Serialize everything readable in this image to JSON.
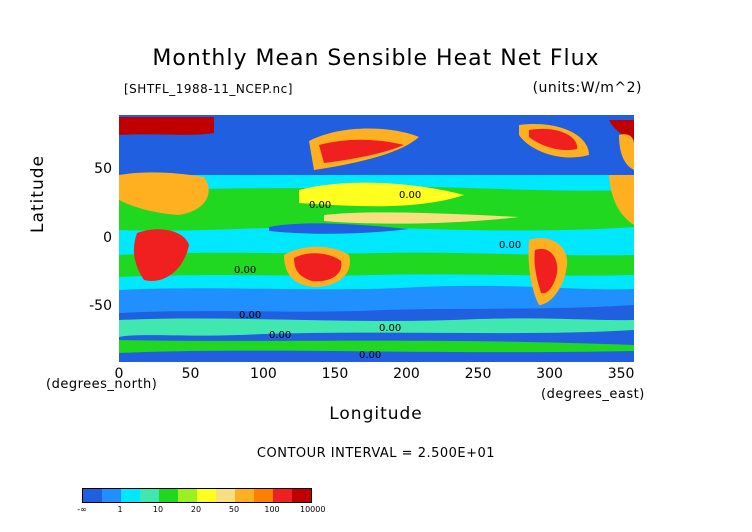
{
  "chart_data": {
    "type": "heatmap",
    "title": "Monthly Mean Sensible Heat Net Flux",
    "file_label": "[SHTFL_1988-11_NCEP.nc]",
    "units_label": "(units:W/m^2)",
    "xlabel": "Longitude",
    "ylabel": "Latitude",
    "x_unit_label": "(degrees_east)",
    "y_unit_label": "(degrees_north)",
    "xlim": [
      0,
      360
    ],
    "ylim": [
      -90,
      90
    ],
    "x_ticks": [
      "0",
      "50",
      "100",
      "150",
      "200",
      "250",
      "300",
      "350"
    ],
    "y_ticks": [
      "50",
      "0",
      "-50"
    ],
    "contour_interval_text": "CONTOUR INTERVAL = 2.500E+01",
    "contour_labels": [
      "0.00",
      "0.00",
      "0.00",
      "0.00",
      "0.00",
      "0.00",
      "0.00",
      "0.00"
    ],
    "colorbar": {
      "colors": [
        "#1f5fe0",
        "#2090ff",
        "#00e8ff",
        "#40e8b0",
        "#20d820",
        "#9af020",
        "#ffff20",
        "#f8e080",
        "#ffb020",
        "#ff8000",
        "#f02020",
        "#c00000"
      ],
      "labels": [
        "-∞",
        "1",
        "10",
        "20",
        "50",
        "100",
        "10000"
      ]
    }
  }
}
